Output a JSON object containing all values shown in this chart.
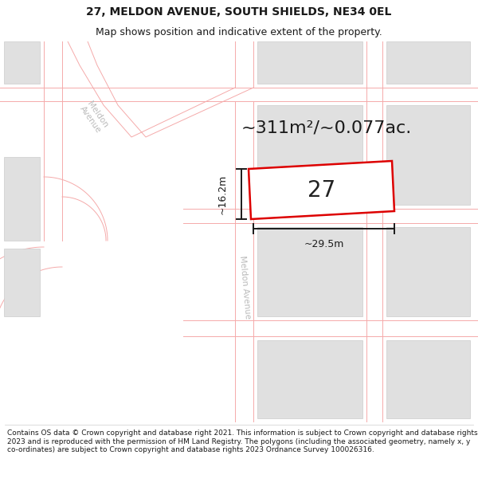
{
  "title": "27, MELDON AVENUE, SOUTH SHIELDS, NE34 0EL",
  "subtitle": "Map shows position and indicative extent of the property.",
  "area_text": "~311m²/~0.077ac.",
  "property_number": "27",
  "dim_width": "~29.5m",
  "dim_height": "~16.2m",
  "footer": "Contains OS data © Crown copyright and database right 2021. This information is subject to Crown copyright and database rights 2023 and is reproduced with the permission of HM Land Registry. The polygons (including the associated geometry, namely x, y co-ordinates) are subject to Crown copyright and database rights 2023 Ordnance Survey 100026316.",
  "bg_color": "#ffffff",
  "map_bg": "#f0f0f0",
  "road_fill": "#ffffff",
  "road_line_color": "#f5aaaa",
  "block_color": "#e0e0e0",
  "block_edge_color": "#cccccc",
  "property_fill": "#ffffff",
  "property_edge": "#dd0000",
  "dim_color": "#1a1a1a",
  "street_color": "#bbbbbb",
  "title_color": "#1a1a1a",
  "footer_color": "#1a1a1a",
  "area_color": "#1a1a1a",
  "title_fontsize": 10,
  "subtitle_fontsize": 9,
  "area_fontsize": 16,
  "number_fontsize": 20,
  "dim_fontsize": 9,
  "street_fontsize": 7.5,
  "footer_fontsize": 6.5
}
